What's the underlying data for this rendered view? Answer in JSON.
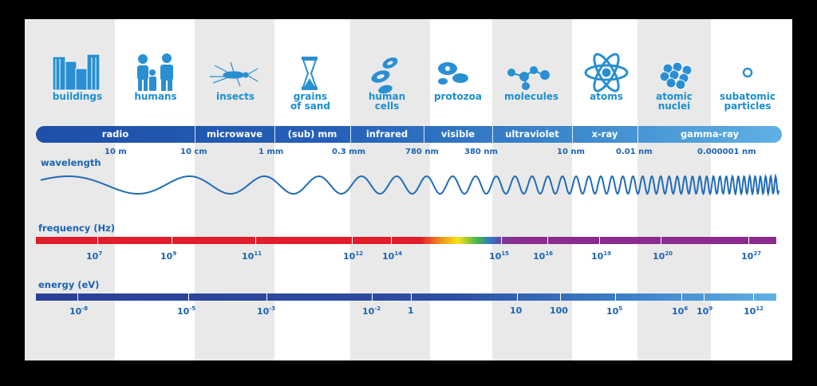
{
  "objects": {
    "buildings": "buildings",
    "humans": "humans",
    "insects": "insects",
    "grains_line1": "grains",
    "grains_line2": "of sand",
    "cells_line1": "human",
    "cells_line2": "cells",
    "protozoa": "protozoa",
    "molecules": "molecules",
    "atoms": "atoms",
    "nuclei_line1": "atomic",
    "nuclei_line2": "nuclei",
    "subatomic_line1": "subatomic",
    "subatomic_line2": "particles"
  },
  "bands": {
    "radio": "radio",
    "microwave": "microwave",
    "submm": "(sub) mm",
    "infrared": "infrared",
    "visible": "visible",
    "ultraviolet": "ultraviolet",
    "xray": "x-ray",
    "gamma": "gamma-ray"
  },
  "wavelength": {
    "title": "wavelength",
    "ticks": [
      "10 m",
      "10 cm",
      "1 mm",
      "0.3 mm",
      "780 nm",
      "380 nm",
      "10 nm",
      "0.01 nm",
      "0.000001 nm"
    ]
  },
  "frequency": {
    "title": "frequency (Hz)",
    "base": "10",
    "exponents": [
      "7",
      "9",
      "11",
      "12",
      "14",
      "15",
      "16",
      "19",
      "20",
      "27"
    ]
  },
  "energy": {
    "title": "energy (eV)",
    "ten": "10",
    "exp": [
      "-8",
      "-5",
      "-3",
      "-2"
    ],
    "one": "1",
    "ten_plain": "10",
    "hundred": "100",
    "exp_high": [
      "5",
      "6",
      "9",
      "12"
    ]
  },
  "colors": {
    "background_columns": "#e9e9e9",
    "band_blue_dark": "#1f5fb6",
    "band_blue_light": "#5fb1e3",
    "label_blue": "#1b8fcf",
    "text_blue": "#1b63b3",
    "frequency_red": "#e01d2a",
    "frequency_purple": "#8b2a8f",
    "energy_blue": "#2b4da3"
  }
}
